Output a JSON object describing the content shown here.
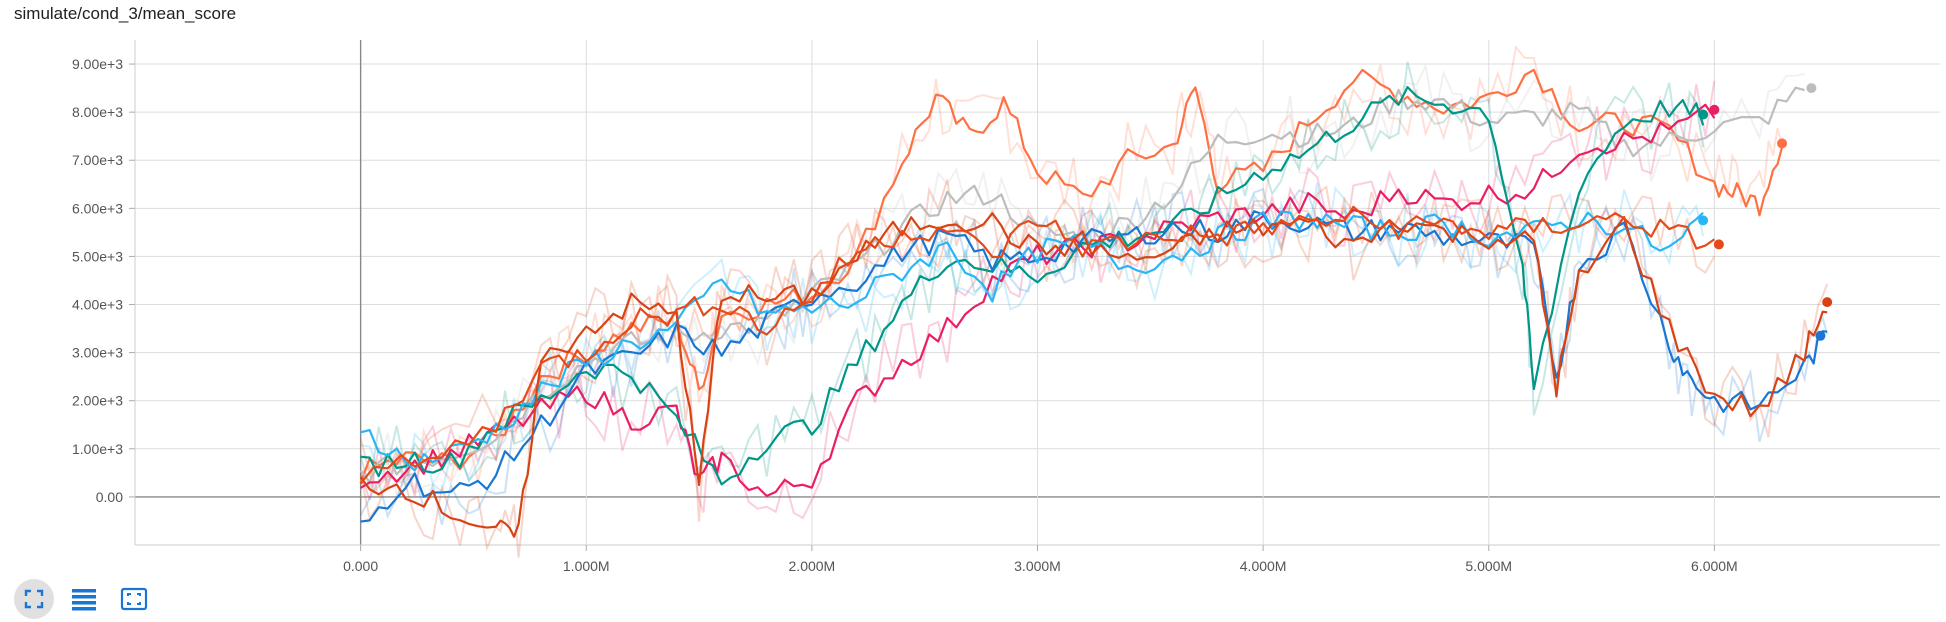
{
  "chart_title": "simulate/cond_3/mean_score",
  "toolbar": {
    "buttons": [
      {
        "name": "expand-button",
        "icon": "fullscreen-icon",
        "active": true
      },
      {
        "name": "data-selection-button",
        "icon": "list-icon",
        "active": false
      },
      {
        "name": "fit-domain-button",
        "icon": "fit-to-domain-icon",
        "active": false
      }
    ],
    "icon_color": "#1976d2"
  },
  "chart_data": {
    "type": "line",
    "title": "simulate/cond_3/mean_score",
    "xlabel": "",
    "ylabel": "",
    "xlim": [
      -1000000,
      7000000
    ],
    "ylim": [
      -1000,
      9500
    ],
    "x_ticks": [
      0,
      1000000,
      2000000,
      3000000,
      4000000,
      5000000,
      6000000
    ],
    "x_tick_labels": [
      "0.000",
      "1.000M",
      "2.000M",
      "3.000M",
      "4.000M",
      "5.000M",
      "6.000M"
    ],
    "y_ticks": [
      0,
      1000,
      2000,
      3000,
      4000,
      5000,
      6000,
      7000,
      8000,
      9000
    ],
    "y_tick_labels": [
      "0.00",
      "1.00e+3",
      "2.00e+3",
      "3.00e+3",
      "4.00e+3",
      "5.00e+3",
      "6.00e+3",
      "7.00e+3",
      "8.00e+3",
      "9.00e+3"
    ],
    "grid": true,
    "smoothing_shadow": true,
    "series": [
      {
        "color": "#ff7043",
        "x": [
          0,
          200000,
          400000,
          600000,
          800000,
          1000000,
          1200000,
          1400000,
          1500000,
          1600000,
          1800000,
          2000000,
          2200000,
          2400000,
          2550000,
          2700000,
          2850000,
          3000000,
          3200000,
          3400000,
          3600000,
          3700000,
          3800000,
          4000000,
          4200000,
          4400000,
          4600000,
          4800000,
          5000000,
          5200000,
          5400000,
          5600000,
          5800000,
          6000000,
          6100000,
          6200000,
          6300000
        ],
        "y": [
          500,
          800,
          700,
          1200,
          2500,
          3000,
          3500,
          3700,
          2200,
          3800,
          4000,
          4200,
          5000,
          7000,
          8300,
          7500,
          8200,
          6800,
          6200,
          7000,
          7300,
          8500,
          6500,
          6800,
          7800,
          8700,
          8400,
          8100,
          8300,
          8900,
          7700,
          7800,
          7600,
          6500,
          6300,
          6100,
          7400
        ]
      },
      {
        "color": "#bdbdbd",
        "x": [
          0,
          200000,
          400000,
          600000,
          800000,
          1000000,
          1200000,
          1400000,
          1600000,
          1800000,
          2000000,
          2200000,
          2400000,
          2600000,
          2800000,
          3000000,
          3200000,
          3400000,
          3600000,
          3800000,
          4000000,
          4200000,
          4400000,
          4600000,
          4800000,
          5000000,
          5200000,
          5400000,
          5600000,
          5800000,
          6000000,
          6200000,
          6400000
        ],
        "y": [
          500,
          700,
          900,
          1300,
          2200,
          2800,
          3200,
          3300,
          3500,
          3600,
          4200,
          4800,
          5600,
          6200,
          6300,
          5500,
          5400,
          5700,
          6300,
          7400,
          7600,
          7500,
          7700,
          8300,
          8200,
          7800,
          7900,
          8000,
          7300,
          7400,
          7700,
          7800,
          8500
        ]
      },
      {
        "color": "#e91e63",
        "x": [
          0,
          200000,
          400000,
          600000,
          800000,
          1000000,
          1200000,
          1400000,
          1500000,
          1600000,
          1800000,
          2000000,
          2200000,
          2400000,
          2600000,
          2800000,
          3000000,
          3200000,
          3400000,
          3600000,
          3800000,
          4000000,
          4200000,
          4400000,
          4600000,
          4800000,
          5000000,
          5200000,
          5400000,
          5600000,
          5800000,
          6000000
        ],
        "y": [
          400,
          600,
          900,
          1300,
          1800,
          2200,
          1600,
          1800,
          300,
          800,
          0,
          400,
          2000,
          2800,
          3500,
          4500,
          5000,
          5200,
          5300,
          5600,
          5800,
          5900,
          6100,
          5800,
          6400,
          6100,
          6300,
          6400,
          7300,
          7400,
          7600,
          8000
        ]
      },
      {
        "color": "#009688",
        "x": [
          0,
          200000,
          400000,
          600000,
          800000,
          1000000,
          1200000,
          1400000,
          1600000,
          1800000,
          2000000,
          2200000,
          2400000,
          2600000,
          2800000,
          3000000,
          3200000,
          3400000,
          3600000,
          3800000,
          4000000,
          4200000,
          4400000,
          4600000,
          4800000,
          5000000,
          5150000,
          5200000,
          5400000,
          5600000,
          5800000,
          5950000
        ],
        "y": [
          600,
          800,
          700,
          1500,
          2000,
          2700,
          2600,
          1600,
          300,
          1200,
          1500,
          2800,
          4000,
          5000,
          4800,
          4600,
          5200,
          5400,
          5600,
          6200,
          6800,
          7200,
          7800,
          8300,
          8200,
          8000,
          4800,
          2200,
          6500,
          7800,
          8100,
          7900
        ]
      },
      {
        "color": "#1976d2",
        "x": [
          0,
          200000,
          400000,
          600000,
          800000,
          1000000,
          1200000,
          1400000,
          1600000,
          1800000,
          2000000,
          2200000,
          2400000,
          2600000,
          2800000,
          3000000,
          3200000,
          3400000,
          3600000,
          3800000,
          4000000,
          4200000,
          4400000,
          4600000,
          4800000,
          5000000,
          5200000,
          5300000,
          5400000,
          5600000,
          5800000,
          5900000,
          6000000,
          6200000,
          6400000,
          6500000
        ],
        "y": [
          -700,
          400,
          0,
          500,
          1500,
          2600,
          2900,
          3400,
          3000,
          3600,
          4200,
          4500,
          5100,
          5400,
          4900,
          5000,
          5300,
          5400,
          5600,
          5500,
          5800,
          5700,
          5500,
          5600,
          5400,
          5300,
          5200,
          2500,
          4800,
          5600,
          3200,
          2400,
          2000,
          1900,
          2700,
          3400
        ]
      },
      {
        "color": "#29b6f6",
        "x": [
          0,
          200000,
          400000,
          600000,
          800000,
          1000000,
          1200000,
          1400000,
          1600000,
          1800000,
          2000000,
          2200000,
          2400000,
          2600000,
          2800000,
          3000000,
          3200000,
          3400000,
          3600000,
          3800000,
          4000000,
          4200000,
          4400000,
          4600000,
          4800000,
          5000000,
          5200000,
          5400000,
          5600000,
          5800000,
          5950000
        ],
        "y": [
          1500,
          700,
          900,
          1400,
          2200,
          2800,
          3200,
          3500,
          4500,
          3800,
          3900,
          4100,
          4700,
          5200,
          4300,
          5100,
          5300,
          4800,
          5000,
          5400,
          5700,
          5800,
          5600,
          5500,
          5700,
          5400,
          5500,
          5800,
          5600,
          5100,
          5800
        ]
      },
      {
        "color": "#d84315",
        "x": [
          0,
          200000,
          400000,
          600000,
          700000,
          800000,
          1000000,
          1200000,
          1400000,
          1500000,
          1600000,
          1800000,
          2000000,
          2200000,
          2400000,
          2600000,
          2800000,
          3000000,
          3200000,
          3400000,
          3600000,
          3800000,
          4000000,
          4200000,
          4400000,
          4600000,
          4800000,
          5000000,
          5200000,
          5300000,
          5400000,
          5600000,
          5800000,
          6000000,
          6200000,
          6400000,
          6500000
        ],
        "y": [
          300,
          200,
          -300,
          -700,
          -800,
          2800,
          3500,
          4000,
          3800,
          200,
          4300,
          4100,
          4200,
          5000,
          5600,
          5800,
          5700,
          5100,
          5300,
          4900,
          5100,
          5500,
          5600,
          5700,
          5200,
          5800,
          5500,
          5400,
          5300,
          2300,
          4500,
          5700,
          3500,
          2100,
          1800,
          3000,
          4050
        ]
      },
      {
        "color": "#e64a19",
        "x": [
          0,
          300000,
          600000,
          800000,
          1000000,
          1200000,
          1400000,
          1600000,
          1800000,
          2000000,
          2200000,
          2400000,
          2600000,
          2800000,
          3000000,
          3200000,
          3400000,
          3600000,
          3800000,
          4000000,
          4200000,
          4400000,
          4600000,
          4800000,
          5000000,
          5200000,
          5400000,
          5600000,
          5800000,
          6000000
        ],
        "y": [
          500,
          700,
          1500,
          2700,
          3000,
          3700,
          3800,
          4100,
          3500,
          4200,
          5100,
          5500,
          5600,
          5000,
          5800,
          5200,
          5300,
          5500,
          5400,
          5600,
          5700,
          5800,
          5600,
          5700,
          5500,
          5600,
          5700,
          5800,
          5500,
          5250
        ]
      }
    ],
    "end_markers": [
      {
        "color": "#bdbdbd",
        "x": 6430000,
        "y": 8500
      },
      {
        "color": "#e91e63",
        "x": 6000000,
        "y": 8050
      },
      {
        "color": "#009688",
        "x": 5950000,
        "y": 7950
      },
      {
        "color": "#ff7043",
        "x": 6300000,
        "y": 7350
      },
      {
        "color": "#29b6f6",
        "x": 5950000,
        "y": 5750
      },
      {
        "color": "#e64a19",
        "x": 6020000,
        "y": 5250
      },
      {
        "color": "#d84315",
        "x": 6500000,
        "y": 4050
      },
      {
        "color": "#1976d2",
        "x": 6470000,
        "y": 3350
      }
    ]
  }
}
